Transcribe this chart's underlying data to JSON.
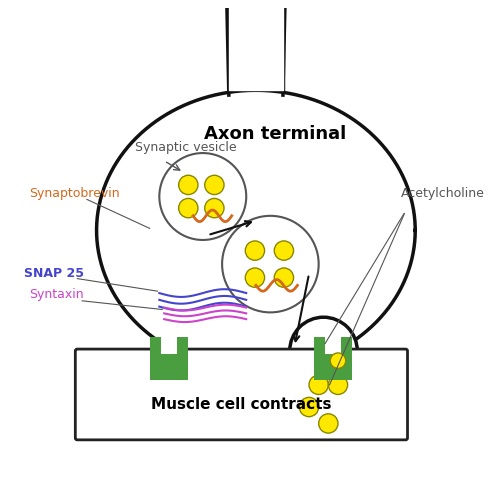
{
  "bg_color": "#ffffff",
  "axon_terminal_label": "Axon terminal",
  "muscle_label": "Muscle cell contracts",
  "labels": {
    "synaptic_vesicle": "Synaptic vesicle",
    "synaptobrevin": "Synaptobrevin",
    "snap25": "SNAP 25",
    "syntaxin": "Syntaxin",
    "acetylcholine": "Acetylcholine"
  },
  "colors": {
    "axon_outline": "#111111",
    "vesicle_outline": "#555555",
    "yellow": "#FFE800",
    "yellow_edge": "#888800",
    "green": "#4a9e3f",
    "synaptobrevin": "#d4691e",
    "snap25": "#4444cc",
    "syntaxin": "#cc44cc",
    "label_gray": "#555555",
    "arrow": "#111111",
    "muscle_box": "#222222"
  }
}
